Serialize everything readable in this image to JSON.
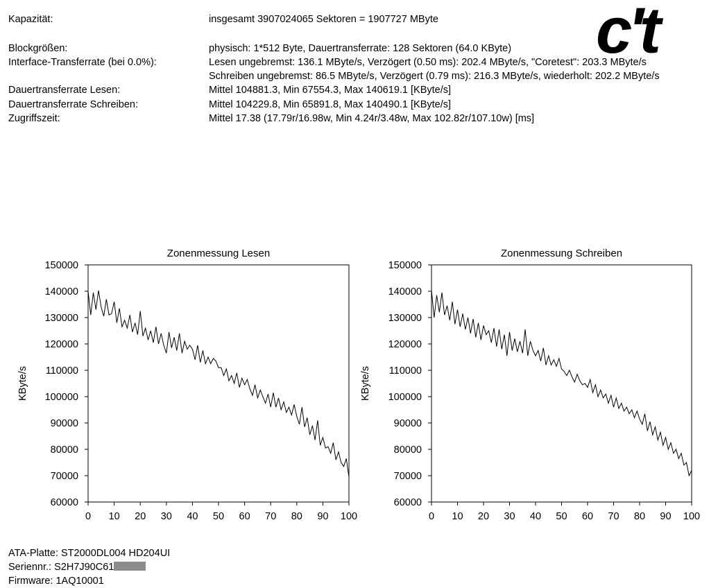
{
  "specs": [
    {
      "label": "Kapazität:",
      "value": "insgesamt 3907024065 Sektoren = 1907727 MByte"
    },
    {
      "label": "Blockgrößen:",
      "value": "physisch: 1*512 Byte, Dauertransferrate: 128 Sektoren (64.0 KByte)"
    },
    {
      "label": "Interface-Transferrate (bei 0.0%):",
      "value": "Lesen ungebremst: 136.1 MByte/s, Verzögert (0.50 ms): 202.4 MByte/s, \"Coretest\": 203.3 MByte/s"
    },
    {
      "label": "",
      "value": "Schreiben ungebremst: 86.5 MByte/s, Verzögert (0.79 ms): 216.3 MByte/s, wiederholt: 202.2 MByte/s"
    },
    {
      "label": "Dauertransferrate Lesen:",
      "value": "Mittel 104881.3, Min 67554.3, Max 140619.1 [KByte/s]"
    },
    {
      "label": "Dauertransferrate Schreiben:",
      "value": "Mittel 104229.8, Min 65891.8, Max 140490.1 [KByte/s]"
    },
    {
      "label": "Zugriffszeit:",
      "value": "Mittel 17.38 (17.79r/16.98w, Min 4.24r/3.48w, Max 102.82r/107.10w) [ms]"
    }
  ],
  "logo": {
    "text": "c't",
    "name": "ct-logo"
  },
  "footer": {
    "disk": "ATA-Platte: ST2000DL004 HD204UI",
    "serial": "Seriennr.: S2H7J90C61",
    "firmware": "Firmware: 1AQ10001"
  },
  "chart_data": [
    {
      "type": "line",
      "title": "Zonenmessung Lesen",
      "ylabel": "KByte/s",
      "xlabel": "",
      "xlim": [
        0,
        100
      ],
      "ylim": [
        60000,
        150000
      ],
      "xticks": [
        0,
        10,
        20,
        30,
        40,
        50,
        60,
        70,
        80,
        90,
        100
      ],
      "yticks": [
        60000,
        70000,
        80000,
        90000,
        100000,
        110000,
        120000,
        130000,
        140000,
        150000
      ],
      "series": [
        {
          "x": [
            0,
            1,
            2,
            3,
            4,
            5,
            6,
            7,
            8,
            9,
            10,
            11,
            12,
            13,
            14,
            15,
            16,
            17,
            18,
            19,
            20,
            21,
            22,
            23,
            24,
            25,
            26,
            27,
            28,
            29,
            30,
            31,
            32,
            33,
            34,
            35,
            36,
            37,
            38,
            39,
            40,
            41,
            42,
            43,
            44,
            45,
            46,
            47,
            48,
            49,
            50,
            51,
            52,
            53,
            54,
            55,
            56,
            57,
            58,
            59,
            60,
            61,
            62,
            63,
            64,
            65,
            66,
            67,
            68,
            69,
            70,
            71,
            72,
            73,
            74,
            75,
            76,
            77,
            78,
            79,
            80,
            81,
            82,
            83,
            84,
            85,
            86,
            87,
            88,
            89,
            90,
            91,
            92,
            93,
            94,
            95,
            96,
            97,
            98,
            99,
            100
          ],
          "y": [
            140000,
            131000,
            139500,
            133000,
            140300,
            134000,
            130500,
            137000,
            131000,
            131500,
            136000,
            128000,
            133500,
            126500,
            129000,
            126000,
            131000,
            124500,
            128000,
            123500,
            132500,
            123000,
            126000,
            121500,
            125000,
            120500,
            126500,
            120000,
            124000,
            119500,
            116500,
            124500,
            118500,
            122500,
            117500,
            124000,
            116500,
            121000,
            118000,
            119500,
            118000,
            114000,
            119500,
            113000,
            117500,
            112500,
            115000,
            112500,
            114500,
            113500,
            111000,
            111000,
            108000,
            110500,
            106000,
            108000,
            105000,
            109000,
            103500,
            107000,
            104500,
            106500,
            103000,
            100500,
            104500,
            99500,
            102500,
            100000,
            97500,
            101000,
            96000,
            101500,
            96000,
            99500,
            95000,
            98000,
            94000,
            96000,
            93000,
            97000,
            92500,
            89500,
            96000,
            88500,
            92000,
            85500,
            89000,
            83500,
            91000,
            81500,
            84500,
            80500,
            81000,
            78500,
            82500,
            76000,
            79000,
            75000,
            73500,
            76500,
            69500
          ]
        }
      ]
    },
    {
      "type": "line",
      "title": "Zonenmessung Schreiben",
      "ylabel": "KByte/s",
      "xlabel": "",
      "xlim": [
        0,
        100
      ],
      "ylim": [
        60000,
        150000
      ],
      "xticks": [
        0,
        10,
        20,
        30,
        40,
        50,
        60,
        70,
        80,
        90,
        100
      ],
      "yticks": [
        60000,
        70000,
        80000,
        90000,
        100000,
        110000,
        120000,
        130000,
        140000,
        150000
      ],
      "series": [
        {
          "x": [
            0,
            1,
            2,
            3,
            4,
            5,
            6,
            7,
            8,
            9,
            10,
            11,
            12,
            13,
            14,
            15,
            16,
            17,
            18,
            19,
            20,
            21,
            22,
            23,
            24,
            25,
            26,
            27,
            28,
            29,
            30,
            31,
            32,
            33,
            34,
            35,
            36,
            37,
            38,
            39,
            40,
            41,
            42,
            43,
            44,
            45,
            46,
            47,
            48,
            49,
            50,
            51,
            52,
            53,
            54,
            55,
            56,
            57,
            58,
            59,
            60,
            61,
            62,
            63,
            64,
            65,
            66,
            67,
            68,
            69,
            70,
            71,
            72,
            73,
            74,
            75,
            76,
            77,
            78,
            79,
            80,
            81,
            82,
            83,
            84,
            85,
            86,
            87,
            88,
            89,
            90,
            91,
            92,
            93,
            94,
            95,
            96,
            97,
            98,
            99,
            100
          ],
          "y": [
            140400,
            130000,
            138500,
            132000,
            139500,
            131000,
            134500,
            129000,
            136000,
            127500,
            133000,
            126500,
            131500,
            125500,
            130000,
            124000,
            129500,
            122500,
            128000,
            121500,
            127000,
            123500,
            125000,
            120500,
            126000,
            119000,
            125500,
            118000,
            123500,
            115500,
            124500,
            117500,
            122000,
            117000,
            121000,
            116500,
            125500,
            115500,
            121000,
            117500,
            115500,
            117500,
            113500,
            118500,
            112000,
            115500,
            112000,
            114000,
            111500,
            114500,
            110500,
            109500,
            108000,
            110000,
            107500,
            105500,
            108500,
            106000,
            104500,
            105000,
            103500,
            106500,
            101500,
            104500,
            100000,
            102500,
            99500,
            101000,
            97500,
            100500,
            96000,
            99500,
            95500,
            97500,
            94500,
            96000,
            93500,
            95000,
            92000,
            94500,
            91500,
            89500,
            93500,
            87000,
            90500,
            85500,
            88500,
            83500,
            86500,
            81500,
            84500,
            80000,
            82500,
            78500,
            80000,
            76500,
            78500,
            74000,
            75000,
            70000,
            72000
          ]
        }
      ]
    }
  ]
}
